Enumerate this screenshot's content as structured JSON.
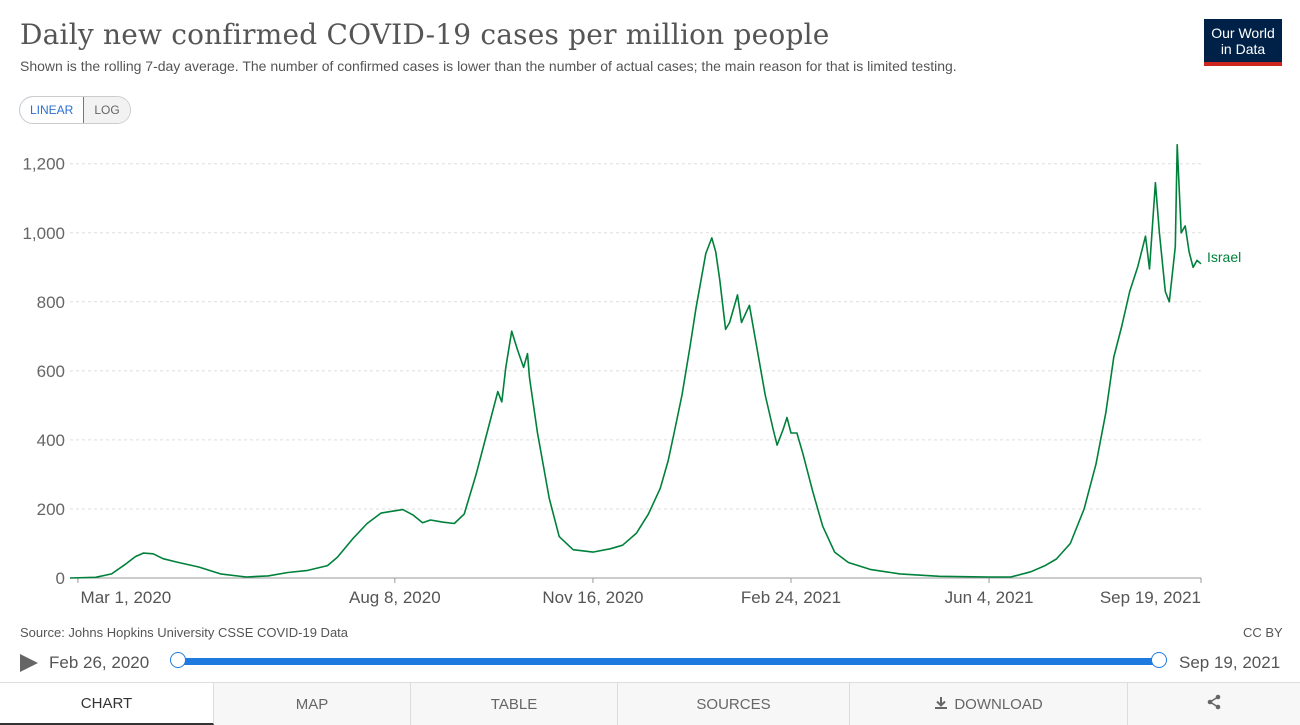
{
  "header": {
    "title": "Daily new confirmed COVID-19 cases per million people",
    "subtitle": "Shown is the rolling 7-day average. The number of confirmed cases is lower than the number of actual cases; the main reason for that is limited testing.",
    "logo_line1": "Our World",
    "logo_line2": "in Data"
  },
  "controls": {
    "linear_label": "LINEAR",
    "log_label": "LOG",
    "active_scale": "linear"
  },
  "footer": {
    "source": "Source: Johns Hopkins University CSSE COVID-19 Data",
    "license": "CC BY"
  },
  "timeline": {
    "start_label": "Feb 26, 2020",
    "end_label": "Sep 19, 2021"
  },
  "tabs": [
    {
      "label": "CHART",
      "active": true
    },
    {
      "label": "MAP",
      "active": false
    },
    {
      "label": "TABLE",
      "active": false
    },
    {
      "label": "SOURCES",
      "active": false
    },
    {
      "label": "DOWNLOAD",
      "active": false
    }
  ],
  "icons": {
    "play": "play-icon",
    "download": "download-icon",
    "share": "share-icon"
  },
  "colors": {
    "series": "#00813b",
    "accent": "#1f7ae0",
    "logo_bg": "#002147",
    "logo_stripe": "#ce261e"
  },
  "chart_data": {
    "type": "line",
    "title": "Daily new confirmed COVID-19 cases per million people",
    "ylim": [
      0,
      1260
    ],
    "yticks": [
      0,
      200,
      400,
      600,
      800,
      1000,
      1200
    ],
    "ytick_labels": [
      "0",
      "200",
      "400",
      "600",
      "800",
      "1,000",
      "1,200"
    ],
    "xlim": [
      "2020-02-26",
      "2021-09-19"
    ],
    "xticks": [
      "2020-03-01",
      "2020-08-08",
      "2020-11-16",
      "2021-02-24",
      "2021-06-04",
      "2021-09-19"
    ],
    "xtick_labels": [
      "Mar 1, 2020",
      "Aug 8, 2020",
      "Nov 16, 2020",
      "Feb 24, 2021",
      "Jun 4, 2021",
      "Sep 19, 2021"
    ],
    "grid": true,
    "series": [
      {
        "name": "Israel",
        "color": "#00813b",
        "points": [
          [
            "2020-02-26",
            0
          ],
          [
            "2020-03-10",
            2
          ],
          [
            "2020-03-18",
            12
          ],
          [
            "2020-03-25",
            40
          ],
          [
            "2020-03-30",
            62
          ],
          [
            "2020-04-03",
            72
          ],
          [
            "2020-04-08",
            70
          ],
          [
            "2020-04-13",
            56
          ],
          [
            "2020-04-20",
            46
          ],
          [
            "2020-05-01",
            32
          ],
          [
            "2020-05-12",
            12
          ],
          [
            "2020-05-25",
            3
          ],
          [
            "2020-06-05",
            6
          ],
          [
            "2020-06-15",
            16
          ],
          [
            "2020-06-25",
            22
          ],
          [
            "2020-07-05",
            36
          ],
          [
            "2020-07-10",
            60
          ],
          [
            "2020-07-18",
            115
          ],
          [
            "2020-07-25",
            158
          ],
          [
            "2020-08-01",
            188
          ],
          [
            "2020-08-06",
            193
          ],
          [
            "2020-08-12",
            198
          ],
          [
            "2020-08-17",
            183
          ],
          [
            "2020-08-22",
            160
          ],
          [
            "2020-08-26",
            168
          ],
          [
            "2020-09-01",
            162
          ],
          [
            "2020-09-07",
            158
          ],
          [
            "2020-09-12",
            185
          ],
          [
            "2020-09-18",
            300
          ],
          [
            "2020-09-24",
            430
          ],
          [
            "2020-09-29",
            540
          ],
          [
            "2020-10-01",
            510
          ],
          [
            "2020-10-03",
            610
          ],
          [
            "2020-10-06",
            715
          ],
          [
            "2020-10-09",
            660
          ],
          [
            "2020-10-12",
            610
          ],
          [
            "2020-10-14",
            650
          ],
          [
            "2020-10-15",
            580
          ],
          [
            "2020-10-19",
            420
          ],
          [
            "2020-10-25",
            230
          ],
          [
            "2020-10-30",
            120
          ],
          [
            "2020-11-06",
            82
          ],
          [
            "2020-11-16",
            75
          ],
          [
            "2020-11-25",
            85
          ],
          [
            "2020-12-01",
            95
          ],
          [
            "2020-12-08",
            130
          ],
          [
            "2020-12-14",
            185
          ],
          [
            "2020-12-20",
            260
          ],
          [
            "2020-12-24",
            340
          ],
          [
            "2020-12-27",
            420
          ],
          [
            "2020-12-31",
            530
          ],
          [
            "2021-01-04",
            670
          ],
          [
            "2021-01-07",
            780
          ],
          [
            "2021-01-12",
            940
          ],
          [
            "2021-01-15",
            985
          ],
          [
            "2021-01-17",
            945
          ],
          [
            "2021-01-19",
            865
          ],
          [
            "2021-01-22",
            720
          ],
          [
            "2021-01-24",
            740
          ],
          [
            "2021-01-28",
            820
          ],
          [
            "2021-01-30",
            740
          ],
          [
            "2021-02-03",
            790
          ],
          [
            "2021-02-07",
            660
          ],
          [
            "2021-02-11",
            530
          ],
          [
            "2021-02-15",
            430
          ],
          [
            "2021-02-17",
            385
          ],
          [
            "2021-02-20",
            430
          ],
          [
            "2021-02-22",
            465
          ],
          [
            "2021-02-24",
            420
          ],
          [
            "2021-02-27",
            420
          ],
          [
            "2021-03-02",
            360
          ],
          [
            "2021-03-07",
            250
          ],
          [
            "2021-03-12",
            150
          ],
          [
            "2021-03-18",
            75
          ],
          [
            "2021-03-25",
            45
          ],
          [
            "2021-04-05",
            25
          ],
          [
            "2021-04-20",
            12
          ],
          [
            "2021-05-10",
            5
          ],
          [
            "2021-06-04",
            3
          ],
          [
            "2021-06-15",
            3
          ],
          [
            "2021-06-25",
            18
          ],
          [
            "2021-07-02",
            35
          ],
          [
            "2021-07-08",
            55
          ],
          [
            "2021-07-15",
            100
          ],
          [
            "2021-07-22",
            200
          ],
          [
            "2021-07-28",
            330
          ],
          [
            "2021-08-02",
            480
          ],
          [
            "2021-08-06",
            640
          ],
          [
            "2021-08-10",
            730
          ],
          [
            "2021-08-14",
            830
          ],
          [
            "2021-08-18",
            900
          ],
          [
            "2021-08-22",
            990
          ],
          [
            "2021-08-24",
            895
          ],
          [
            "2021-08-27",
            1145
          ],
          [
            "2021-08-29",
            1000
          ],
          [
            "2021-09-01",
            830
          ],
          [
            "2021-09-03",
            800
          ],
          [
            "2021-09-06",
            960
          ],
          [
            "2021-09-07",
            1255
          ],
          [
            "2021-09-09",
            1000
          ],
          [
            "2021-09-11",
            1020
          ],
          [
            "2021-09-13",
            945
          ],
          [
            "2021-09-15",
            900
          ],
          [
            "2021-09-17",
            920
          ],
          [
            "2021-09-19",
            910
          ]
        ]
      }
    ]
  }
}
